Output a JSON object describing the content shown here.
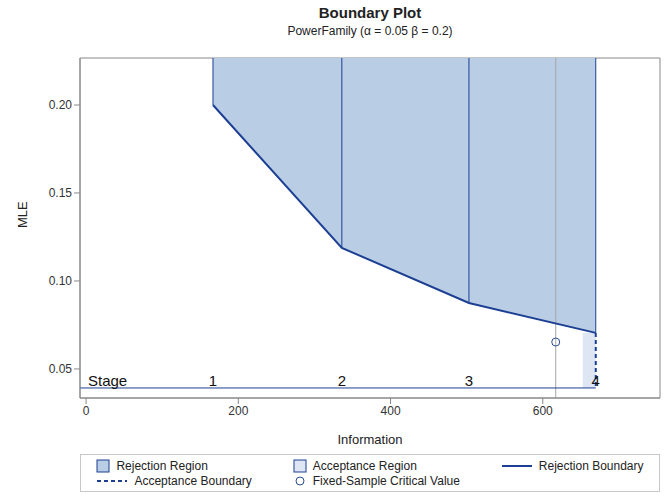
{
  "chart_data": {
    "type": "boundary",
    "title": "Boundary Plot",
    "subtitle": "PowerFamily (α = 0.05  β = 0.2)",
    "x_label": "Information",
    "y_label": "MLE",
    "xlim": [
      -8,
      754
    ],
    "ylim": [
      0.0335,
      0.2267
    ],
    "xticks": [
      0,
      200,
      400,
      600
    ],
    "yticks": [
      0.05,
      {
        "value": 0.1,
        "label": "0.10"
      },
      0.15,
      {
        "value": 0.2,
        "label": "0.20"
      }
    ],
    "stage_label": "Stage",
    "stages": [
      1,
      2,
      3,
      4
    ],
    "stage_axis_y": 0.0392,
    "information": [
      166.7,
      336,
      503,
      669.6
    ],
    "rejection_boundary": [
      0.2,
      0.1188,
      0.0875,
      0.0705
    ],
    "acceptance_boundary": {
      "information": 669.6,
      "values": [
        0.0705,
        0.0392
      ]
    },
    "acceptance_region": {
      "x": [
        652.5,
        669.6
      ],
      "y": [
        0.0392,
        0.0705
      ]
    },
    "fixed_sample": {
      "information": 617,
      "critical_value": 0.0653
    },
    "legend": "bottom",
    "series": [
      {
        "name": "Rejection Region",
        "type": "area",
        "color": "#b9cde5"
      },
      {
        "name": "Acceptance Region",
        "type": "area",
        "color": "#dde6f2"
      },
      {
        "name": "Rejection Boundary",
        "type": "line",
        "line_style": "solid",
        "color": "#1c3f94"
      },
      {
        "name": "Acceptance Boundary",
        "type": "line",
        "line_style": "dashed",
        "color": "#1c3f94"
      },
      {
        "name": "Fixed-Sample Critical Value",
        "type": "scatter",
        "marker": "circle",
        "color": "#2a4d8f"
      }
    ]
  }
}
